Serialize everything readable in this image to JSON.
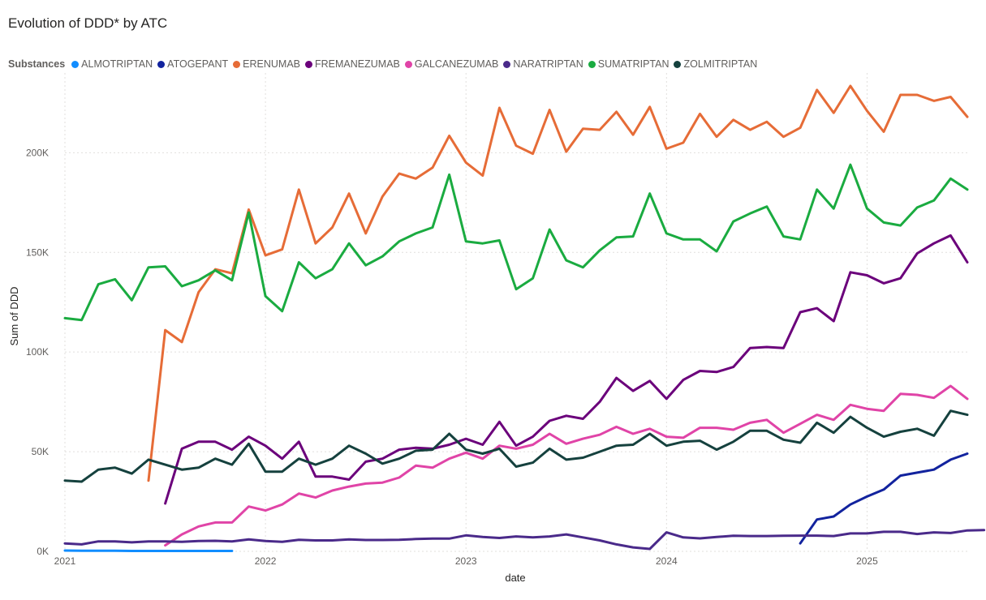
{
  "title": "Evolution of DDD* by ATC",
  "legend": {
    "title": "Substances",
    "items": [
      {
        "label": "ALMOTRIPTAN",
        "color": "#118DFF"
      },
      {
        "label": "ATOGEPANT",
        "color": "#12239E"
      },
      {
        "label": "ERENUMAB",
        "color": "#E66C37"
      },
      {
        "label": "FREMANEZUMAB",
        "color": "#6B007B"
      },
      {
        "label": "GALCANEZUMAB",
        "color": "#E044A7"
      },
      {
        "label": "NARATRIPTAN",
        "color": "#4A2A8A"
      },
      {
        "label": "SUMATRIPTAN",
        "color": "#1AAB40"
      },
      {
        "label": "ZOLMITRIPTAN",
        "color": "#15413E"
      }
    ]
  },
  "chart_data": {
    "type": "line",
    "title": "Evolution of DDD* by ATC",
    "xlabel": "date",
    "ylabel": "Sum of DDD",
    "x_start": "2021-01",
    "x_range": [
      0,
      54
    ],
    "ylim": [
      0,
      240000
    ],
    "yticks": [
      0,
      50000,
      100000,
      150000,
      200000
    ],
    "ytick_labels": [
      "0K",
      "50K",
      "100K",
      "150K",
      "200K"
    ],
    "xticks": [
      0,
      12,
      24,
      36,
      48
    ],
    "xtick_labels": [
      "2021",
      "2022",
      "2023",
      "2024",
      "2025"
    ],
    "grid": true,
    "series": [
      {
        "name": "ALMOTRIPTAN",
        "color": "#118DFF",
        "start": 0,
        "values": [
          400,
          300,
          300,
          300,
          200,
          200,
          200,
          200,
          200,
          200,
          200
        ]
      },
      {
        "name": "ATOGEPANT",
        "color": "#12239E",
        "start": 44,
        "values": [
          4000,
          16000,
          17500,
          23500,
          27500,
          31000,
          38000,
          39500,
          41000,
          46000,
          49000
        ]
      },
      {
        "name": "ERENUMAB",
        "color": "#E66C37",
        "start": 5,
        "values": [
          35500,
          111000,
          105000,
          130000,
          141500,
          139500,
          171500,
          148500,
          151500,
          181500,
          154500,
          162500,
          179500,
          159500,
          178000,
          189500,
          187000,
          192500,
          208500,
          195000,
          188500,
          222500,
          203500,
          199500,
          221500,
          200500,
          212000,
          211500,
          220500,
          209000,
          223000,
          202000,
          205000,
          219500,
          208000,
          216500,
          211500,
          215500,
          208000,
          212500,
          231500,
          220000,
          233500,
          221000,
          210500,
          229000,
          229000,
          226000,
          228000,
          218000
        ]
      },
      {
        "name": "FREMANEZUMAB",
        "color": "#6B007B",
        "start": 6,
        "values": [
          24000,
          51500,
          55000,
          55000,
          51000,
          57500,
          53000,
          46500,
          55000,
          37500,
          37500,
          36000,
          45000,
          46500,
          51000,
          52000,
          51500,
          53500,
          56500,
          53500,
          65000,
          53000,
          57500,
          65500,
          68000,
          66500,
          75000,
          87000,
          80500,
          85500,
          76500,
          86000,
          90500,
          90000,
          92500,
          102000,
          102500,
          102000,
          120000,
          122000,
          115500,
          140000,
          138500,
          134500,
          137000,
          149500,
          154500,
          158500,
          145000
        ]
      },
      {
        "name": "GALCANEZUMAB",
        "color": "#E044A7",
        "start": 6,
        "values": [
          3000,
          8500,
          12500,
          14500,
          14500,
          22500,
          20500,
          23500,
          29000,
          27000,
          30500,
          32500,
          34000,
          34500,
          37000,
          43000,
          42000,
          46500,
          49500,
          46500,
          53000,
          51500,
          53500,
          59000,
          54000,
          56500,
          58500,
          62500,
          59000,
          61500,
          57500,
          57000,
          62000,
          62000,
          61000,
          64500,
          66000,
          59500,
          64000,
          68500,
          66000,
          73500,
          71500,
          70500,
          79000,
          78500,
          77000,
          83000,
          76500
        ]
      },
      {
        "name": "NARATRIPTAN",
        "color": "#4A2A8A",
        "start": 0,
        "values": [
          4000,
          3500,
          5000,
          5000,
          4500,
          5000,
          5000,
          4800,
          5200,
          5300,
          5000,
          6000,
          5200,
          4800,
          5800,
          5500,
          5500,
          6000,
          5700,
          5700,
          5800,
          6200,
          6400,
          6400,
          8000,
          7200,
          6700,
          7500,
          7000,
          7500,
          8500,
          7000,
          5500,
          3500,
          2000,
          1200,
          9500,
          7000,
          6500,
          7200,
          7800,
          7700,
          7700,
          7800,
          7900,
          7900,
          7700,
          9000,
          9000,
          9800,
          9800,
          8700,
          9500,
          9200,
          10500,
          10700
        ]
      },
      {
        "name": "SUMATRIPTAN",
        "color": "#1AAB40",
        "start": 0,
        "values": [
          117000,
          116000,
          134000,
          136500,
          126000,
          142500,
          143000,
          133000,
          136000,
          141000,
          136000,
          170000,
          128000,
          120500,
          145000,
          137000,
          141500,
          154500,
          143500,
          148000,
          155500,
          159500,
          162500,
          189000,
          155500,
          154500,
          156000,
          131500,
          137000,
          161500,
          146000,
          142500,
          151000,
          157500,
          158000,
          179500,
          159500,
          156500,
          156500,
          150500,
          165500,
          169500,
          173000,
          158000,
          156500,
          181500,
          172000,
          194000,
          172000,
          165000,
          163500,
          172500,
          176000,
          187000,
          181500
        ]
      },
      {
        "name": "ZOLMITRIPTAN",
        "color": "#15413E",
        "start": 0,
        "values": [
          35500,
          35000,
          41000,
          42000,
          39000,
          46000,
          43500,
          41000,
          42000,
          46500,
          43500,
          54000,
          40000,
          40000,
          46500,
          43500,
          46500,
          53000,
          49000,
          44000,
          46500,
          50500,
          51000,
          59000,
          51000,
          49000,
          51500,
          42500,
          44500,
          51500,
          46000,
          47000,
          50000,
          53000,
          53500,
          59000,
          53000,
          55000,
          55500,
          51000,
          55000,
          60500,
          60500,
          56000,
          54500,
          64500,
          59500,
          67500,
          62000,
          57500,
          60000,
          61500,
          58000,
          70500,
          68500
        ]
      }
    ]
  }
}
